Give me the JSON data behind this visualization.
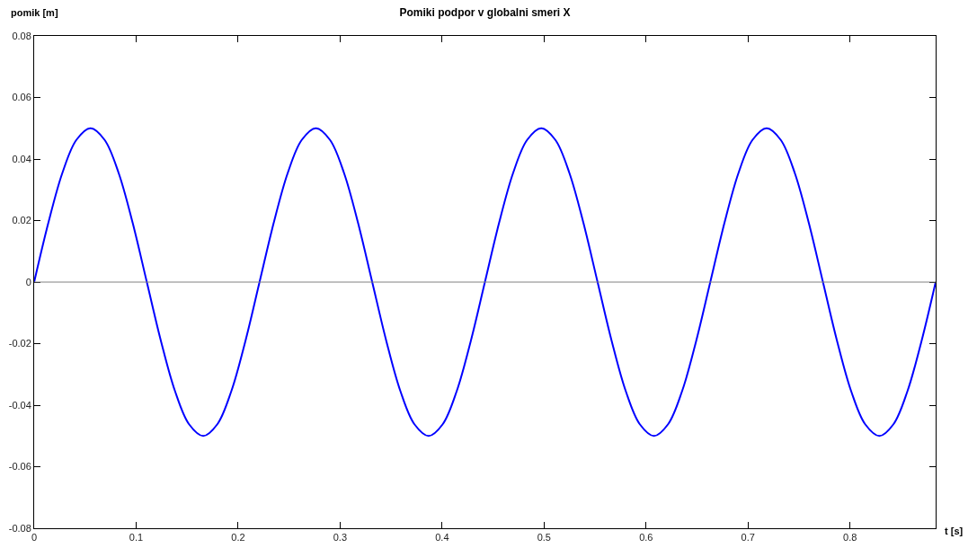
{
  "chart_data": {
    "type": "line",
    "title": "Pomiki podpor v globalni smeri X",
    "xlabel": "t [s]",
    "ylabel": "pomik [m]",
    "x": [
      0,
      0.0138,
      0.0276,
      0.0414,
      0.0553,
      0.0691,
      0.0829,
      0.0967,
      0.1105,
      0.1243,
      0.1381,
      0.1519,
      0.1658,
      0.1796,
      0.1934,
      0.2072,
      0.221,
      0.2348,
      0.2486,
      0.2624,
      0.2763,
      0.2901,
      0.3039,
      0.3177,
      0.3315,
      0.3453,
      0.3591,
      0.3729,
      0.3868,
      0.4006,
      0.4144,
      0.4282,
      0.442,
      0.4558,
      0.4696,
      0.4834,
      0.4973,
      0.5111,
      0.5249,
      0.5387,
      0.5525,
      0.5663,
      0.5801,
      0.5939,
      0.6078,
      0.6216,
      0.6354,
      0.6492,
      0.663,
      0.6768,
      0.6906,
      0.7044,
      0.7183,
      0.7321,
      0.7459,
      0.7597,
      0.7735,
      0.7873,
      0.8011,
      0.8149,
      0.8288,
      0.8426,
      0.8564,
      0.8702,
      0.884
    ],
    "series": [
      {
        "color": "#0000ff",
        "values": [
          0,
          0.0191,
          0.0354,
          0.0462,
          0.05,
          0.0462,
          0.0354,
          0.0191,
          0,
          -0.0191,
          -0.0354,
          -0.0462,
          -0.05,
          -0.0462,
          -0.0354,
          -0.0191,
          0,
          0.0191,
          0.0354,
          0.0462,
          0.05,
          0.0462,
          0.0354,
          0.0191,
          0,
          -0.0191,
          -0.0354,
          -0.0462,
          -0.05,
          -0.0462,
          -0.0354,
          -0.0191,
          0,
          0.0191,
          0.0354,
          0.0462,
          0.05,
          0.0462,
          0.0354,
          0.0191,
          0,
          -0.0191,
          -0.0354,
          -0.0462,
          -0.05,
          -0.0462,
          -0.0354,
          -0.0191,
          0,
          0.0191,
          0.0354,
          0.0462,
          0.05,
          0.0462,
          0.0354,
          0.0191,
          0,
          -0.0191,
          -0.0354,
          -0.0462,
          -0.05,
          -0.0462,
          -0.0354,
          -0.0191,
          0
        ]
      }
    ],
    "xlim": [
      0,
      0.884
    ],
    "xticks": [
      0,
      0.1,
      0.2,
      0.3,
      0.4,
      0.5,
      0.6,
      0.7,
      0.8
    ],
    "ylim": [
      -0.08,
      0.08
    ],
    "yticks": [
      -0.08,
      -0.06,
      -0.04,
      -0.02,
      0,
      0.02,
      0.04,
      0.06,
      0.08
    ],
    "ref_lines": [
      {
        "axis": "y",
        "value": 0,
        "color": "#808080"
      }
    ],
    "grid": false
  }
}
